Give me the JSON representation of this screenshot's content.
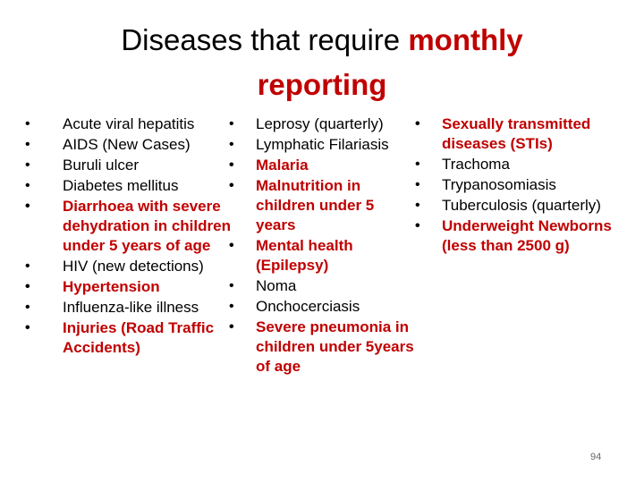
{
  "title": {
    "part1": "Diseases that require ",
    "part2": "monthly reporting"
  },
  "columns": [
    {
      "items": [
        {
          "text": "Acute viral hepatitis",
          "red": false
        },
        {
          "text": "AIDS (New Cases)",
          "red": false
        },
        {
          "text": "Buruli ulcer",
          "red": false
        },
        {
          "text": "Diabetes mellitus",
          "red": false
        },
        {
          "text": "Diarrhoea with severe dehydration in children under 5 years of age",
          "red": true
        },
        {
          "text": "HIV (new detections)",
          "red": false
        },
        {
          "text": "Hypertension",
          "red": true
        },
        {
          "text": "Influenza-like illness",
          "red": false
        },
        {
          "text": "Injuries (Road Traffic Accidents)",
          "red": true
        }
      ]
    },
    {
      "items": [
        {
          "text": "Leprosy (quarterly)",
          "red": false
        },
        {
          "text": "Lymphatic Filariasis",
          "red": false
        },
        {
          "text": "Malaria",
          "red": true
        },
        {
          "text": "Malnutrition in children under 5 years",
          "red": true
        },
        {
          "text": "Mental health (Epilepsy)",
          "red": true
        },
        {
          "text": "Noma",
          "red": false
        },
        {
          "text": "Onchocerciasis",
          "red": false
        },
        {
          "text": "Severe pneumonia in children under 5years of age",
          "red": true
        }
      ]
    },
    {
      "items": [
        {
          "text": "Sexually transmitted diseases (STIs)",
          "red": true
        },
        {
          "text": "Trachoma",
          "red": false
        },
        {
          "text": "Trypanosomiasis",
          "red": false
        },
        {
          "text": "Tuberculosis (quarterly)",
          "red": false
        },
        {
          "text": "Underweight Newborns (less than 2500 g)",
          "red": true
        }
      ]
    }
  ],
  "page_number": "94",
  "colors": {
    "highlight": "#c00000",
    "text": "#000000"
  }
}
